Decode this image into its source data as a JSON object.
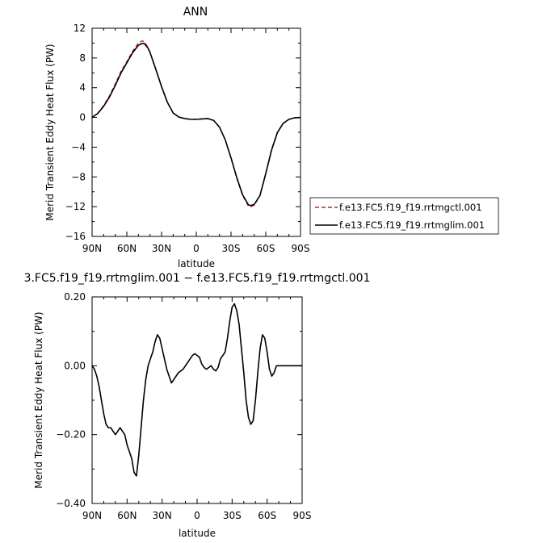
{
  "chart_data": [
    {
      "type": "line",
      "title": "ANN",
      "xlabel": "latitude",
      "ylabel": "Merid Transient Eddy Heat Flux (PW)",
      "xlim": [
        90,
        -90
      ],
      "ylim": [
        -16,
        12
      ],
      "x_ticks": [
        90,
        60,
        30,
        0,
        -30,
        -60,
        -90
      ],
      "x_tick_labels": [
        "90N",
        "60N",
        "30N",
        "0",
        "30S",
        "60S",
        "90S"
      ],
      "y_ticks": [
        12,
        8,
        4,
        0,
        -4,
        -8,
        -12,
        -16
      ],
      "y_tick_labels": [
        "12",
        "8",
        "4",
        "0",
        "−4",
        "−8",
        "−12",
        "−16"
      ],
      "grid": false,
      "legend_position": "right",
      "series": [
        {
          "name": "f.e13.FC5.f19_f19.rrtmgctl.001",
          "color": "#cc1f1f",
          "dash": "dashed",
          "x": [
            90,
            85,
            80,
            75,
            70,
            65,
            60,
            55,
            50,
            47,
            45,
            42,
            40,
            35,
            30,
            25,
            20,
            15,
            10,
            5,
            0,
            -5,
            -10,
            -15,
            -20,
            -25,
            -30,
            -35,
            -40,
            -45,
            -47,
            -50,
            -55,
            -60,
            -65,
            -70,
            -75,
            -80,
            -85,
            -90
          ],
          "y": [
            0.0,
            0.6,
            1.6,
            2.9,
            4.5,
            6.2,
            7.5,
            8.9,
            10.0,
            10.3,
            10.2,
            9.5,
            8.8,
            6.5,
            4.1,
            2.0,
            0.6,
            0.05,
            -0.15,
            -0.25,
            -0.25,
            -0.2,
            -0.15,
            -0.4,
            -1.3,
            -3.0,
            -5.5,
            -8.2,
            -10.5,
            -11.9,
            -12.0,
            -11.8,
            -10.5,
            -7.5,
            -4.3,
            -2.0,
            -0.8,
            -0.25,
            -0.05,
            0.0
          ]
        },
        {
          "name": "f.e13.FC5.f19_f19.rrtmglim.001",
          "color": "#000000",
          "dash": "solid",
          "x": [
            90,
            85,
            80,
            75,
            70,
            65,
            60,
            55,
            50,
            47,
            45,
            42,
            40,
            35,
            30,
            25,
            20,
            15,
            10,
            5,
            0,
            -5,
            -10,
            -15,
            -20,
            -25,
            -30,
            -35,
            -40,
            -45,
            -47,
            -50,
            -55,
            -60,
            -65,
            -70,
            -75,
            -80,
            -85,
            -90
          ],
          "y": [
            0.0,
            0.55,
            1.5,
            2.75,
            4.3,
            6.0,
            7.35,
            8.7,
            9.7,
            9.95,
            9.95,
            9.4,
            8.75,
            6.5,
            4.15,
            2.05,
            0.6,
            0.05,
            -0.15,
            -0.25,
            -0.25,
            -0.2,
            -0.15,
            -0.4,
            -1.3,
            -3.0,
            -5.45,
            -8.1,
            -10.4,
            -11.75,
            -11.85,
            -11.7,
            -10.5,
            -7.55,
            -4.4,
            -2.05,
            -0.8,
            -0.25,
            -0.05,
            0.0
          ]
        }
      ]
    },
    {
      "type": "line",
      "title": "3.FC5.f19_f19.rrtmglim.001 − f.e13.FC5.f19_f19.rrtmgctl.001",
      "xlabel": "latitude",
      "ylabel": "Merid Transient Eddy Heat Flux (PW)",
      "xlim": [
        90,
        -90
      ],
      "ylim": [
        -0.4,
        0.2
      ],
      "x_ticks": [
        90,
        60,
        30,
        0,
        -30,
        -60,
        -90
      ],
      "x_tick_labels": [
        "90N",
        "60N",
        "30N",
        "0",
        "30S",
        "60S",
        "90S"
      ],
      "y_ticks": [
        0.2,
        0.0,
        -0.2,
        -0.4
      ],
      "y_tick_labels": [
        "0.20",
        "0.00",
        "−0.20",
        "−0.40"
      ],
      "grid": false,
      "series": [
        {
          "color": "#000000",
          "dash": "solid",
          "x": [
            90,
            88,
            86,
            84,
            82,
            80,
            78,
            76,
            74,
            72,
            70,
            68,
            66,
            64,
            62,
            60,
            58,
            56,
            54,
            52,
            50,
            48,
            46,
            44,
            42,
            40,
            38,
            36,
            34,
            32,
            30,
            28,
            26,
            24,
            22,
            20,
            18,
            16,
            14,
            12,
            10,
            8,
            6,
            4,
            2,
            0,
            -2,
            -4,
            -6,
            -8,
            -10,
            -12,
            -14,
            -16,
            -18,
            -20,
            -22,
            -24,
            -26,
            -28,
            -30,
            -32,
            -34,
            -36,
            -38,
            -40,
            -42,
            -44,
            -46,
            -48,
            -50,
            -52,
            -54,
            -56,
            -58,
            -60,
            -62,
            -64,
            -66,
            -68,
            -70,
            -72,
            -74,
            -76,
            -78,
            -80,
            -82,
            -84,
            -86,
            -88,
            -90
          ],
          "y": [
            0.0,
            -0.01,
            -0.03,
            -0.06,
            -0.1,
            -0.14,
            -0.17,
            -0.18,
            -0.18,
            -0.19,
            -0.2,
            -0.19,
            -0.18,
            -0.19,
            -0.2,
            -0.23,
            -0.25,
            -0.27,
            -0.31,
            -0.32,
            -0.26,
            -0.18,
            -0.1,
            -0.04,
            0.0,
            0.02,
            0.04,
            0.07,
            0.09,
            0.08,
            0.05,
            0.02,
            -0.01,
            -0.03,
            -0.05,
            -0.04,
            -0.03,
            -0.02,
            -0.015,
            -0.01,
            0.0,
            0.01,
            0.02,
            0.03,
            0.035,
            0.03,
            0.025,
            0.005,
            -0.005,
            -0.01,
            -0.005,
            0.0,
            -0.01,
            -0.015,
            -0.005,
            0.02,
            0.03,
            0.04,
            0.08,
            0.13,
            0.17,
            0.18,
            0.16,
            0.12,
            0.05,
            -0.02,
            -0.1,
            -0.15,
            -0.17,
            -0.16,
            -0.1,
            -0.02,
            0.05,
            0.09,
            0.08,
            0.04,
            -0.01,
            -0.03,
            -0.02,
            0.0,
            0.0,
            0.0,
            0.0,
            0.0,
            0.0,
            0.0,
            0.0,
            0.0,
            0.0,
            0.0,
            0.0
          ]
        }
      ]
    }
  ]
}
